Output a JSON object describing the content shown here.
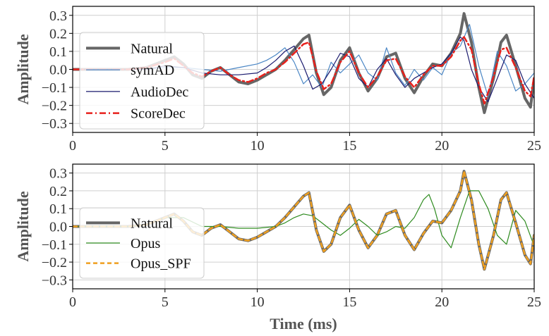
{
  "chart_data": [
    {
      "type": "line",
      "xlabel": "",
      "ylabel": "Amplitude",
      "xlim": [
        0,
        25
      ],
      "ylim": [
        -0.35,
        0.35
      ],
      "xticks": [
        0,
        5,
        10,
        15,
        20,
        25
      ],
      "yticks": [
        -0.3,
        -0.2,
        -0.1,
        0.0,
        0.1,
        0.2,
        0.3
      ],
      "xtick_labels": [
        "0",
        "5",
        "10",
        "15",
        "20",
        "25"
      ],
      "ytick_labels": [
        "−0.3",
        "−0.2",
        "−0.1",
        "0.0",
        "0.1",
        "0.2",
        "0.3"
      ],
      "grid": true,
      "legend_position": "upper-left",
      "series": [
        {
          "name": "Natural",
          "color": "#666666",
          "style": "solid-thick",
          "x": [
            0,
            1,
            2,
            3,
            4,
            5,
            5.5,
            6,
            6.5,
            7,
            7.5,
            8,
            8.5,
            9,
            9.5,
            10,
            10.5,
            11,
            11.5,
            12,
            12.5,
            12.8,
            13.2,
            13.6,
            14,
            14.5,
            15,
            15.5,
            16,
            16.5,
            17,
            17.5,
            18,
            18.5,
            19,
            19.5,
            20,
            20.5,
            21,
            21.2,
            21.6,
            22,
            22.3,
            22.8,
            23.2,
            23.5,
            24,
            24.5,
            24.8,
            25
          ],
          "y": [
            0.0,
            0.0,
            0.0,
            0.0,
            0.01,
            0.05,
            0.07,
            0.03,
            -0.03,
            -0.05,
            -0.01,
            0.01,
            -0.03,
            -0.07,
            -0.08,
            -0.06,
            -0.03,
            0.0,
            0.05,
            0.11,
            0.17,
            0.19,
            -0.02,
            -0.14,
            -0.1,
            0.05,
            0.12,
            -0.02,
            -0.12,
            -0.05,
            0.07,
            0.09,
            -0.05,
            -0.13,
            -0.04,
            0.03,
            0.02,
            0.09,
            0.2,
            0.31,
            0.15,
            -0.1,
            -0.24,
            -0.05,
            0.15,
            0.19,
            0.02,
            -0.16,
            -0.21,
            -0.05
          ]
        },
        {
          "name": "symAD",
          "color": "#4a86c5",
          "style": "solid-thin",
          "x": [
            0,
            1,
            2,
            3,
            4,
            5,
            6,
            7,
            8,
            9,
            10,
            10.5,
            11,
            11.5,
            12,
            12.5,
            13,
            13.5,
            14,
            14.5,
            15,
            15.5,
            16,
            16.5,
            17,
            17.5,
            18,
            18.5,
            19,
            19.5,
            20,
            20.5,
            21,
            21.5,
            22,
            22.5,
            23,
            23.5,
            24,
            24.5,
            25
          ],
          "y": [
            0.0,
            0.0,
            0.0,
            0.0,
            0.0,
            0.01,
            0.01,
            0.0,
            -0.01,
            0.01,
            0.03,
            0.05,
            0.08,
            0.12,
            0.04,
            -0.08,
            -0.03,
            -0.1,
            0.04,
            -0.02,
            0.03,
            0.08,
            -0.02,
            -0.06,
            0.12,
            -0.02,
            -0.09,
            0.0,
            -0.06,
            0.01,
            -0.03,
            0.09,
            0.13,
            0.25,
            0.02,
            -0.15,
            0.1,
            0.02,
            -0.12,
            -0.08,
            -0.02
          ]
        },
        {
          "name": "AudioDec",
          "color": "#1a1a6e",
          "style": "solid-thin",
          "x": [
            0,
            1,
            2,
            3,
            4,
            5,
            6,
            7,
            8,
            9,
            10,
            10.5,
            11,
            11.5,
            12,
            12.5,
            13,
            13.5,
            14,
            14.5,
            15,
            15.5,
            16,
            16.5,
            17,
            17.5,
            18,
            18.5,
            19,
            19.5,
            20,
            20.5,
            21,
            21.2,
            21.6,
            22,
            22.5,
            23,
            23.5,
            24,
            24.5,
            25
          ],
          "y": [
            0.0,
            0.0,
            0.0,
            0.0,
            0.0,
            0.02,
            0.01,
            -0.02,
            -0.03,
            -0.03,
            -0.02,
            0.01,
            0.05,
            0.1,
            0.13,
            0.02,
            -0.11,
            -0.08,
            0.0,
            0.09,
            0.07,
            -0.05,
            -0.1,
            0.0,
            0.06,
            -0.03,
            -0.1,
            -0.05,
            -0.02,
            0.01,
            0.03,
            0.09,
            0.18,
            0.16,
            0.0,
            -0.1,
            -0.18,
            -0.05,
            0.08,
            0.05,
            -0.08,
            -0.16
          ]
        },
        {
          "name": "ScoreDec",
          "color": "#e8211c",
          "style": "dashdot",
          "x": [
            0,
            1,
            2,
            3,
            4,
            5,
            5.5,
            6,
            6.5,
            7,
            7.5,
            8,
            8.5,
            9,
            9.5,
            10,
            10.5,
            11,
            11.5,
            12,
            12.5,
            12.8,
            13.2,
            13.6,
            14,
            14.5,
            15,
            15.5,
            16,
            16.5,
            17,
            17.5,
            18,
            18.5,
            19,
            19.5,
            20,
            20.5,
            21,
            21.2,
            21.6,
            22,
            22.3,
            22.8,
            23.2,
            23.5,
            24,
            24.5,
            24.8,
            25
          ],
          "y": [
            0.0,
            0.0,
            0.0,
            0.0,
            0.01,
            0.04,
            0.06,
            0.02,
            -0.02,
            -0.04,
            -0.01,
            0.01,
            -0.03,
            -0.06,
            -0.07,
            -0.05,
            -0.02,
            0.0,
            0.04,
            0.09,
            0.14,
            0.15,
            -0.01,
            -0.11,
            -0.08,
            0.04,
            0.1,
            -0.02,
            -0.1,
            -0.04,
            0.05,
            0.06,
            -0.04,
            -0.1,
            -0.03,
            0.02,
            0.02,
            0.07,
            0.16,
            0.18,
            0.11,
            -0.08,
            -0.19,
            -0.04,
            0.11,
            0.12,
            0.01,
            -0.12,
            -0.15,
            -0.04
          ]
        }
      ]
    },
    {
      "type": "line",
      "xlabel": "Time (ms)",
      "ylabel": "Amplitude",
      "xlim": [
        0,
        25
      ],
      "ylim": [
        -0.35,
        0.35
      ],
      "xticks": [
        0,
        5,
        10,
        15,
        20,
        25
      ],
      "yticks": [
        -0.3,
        -0.2,
        -0.1,
        0.0,
        0.1,
        0.2,
        0.3
      ],
      "xtick_labels": [
        "0",
        "5",
        "10",
        "15",
        "20",
        "25"
      ],
      "ytick_labels": [
        "−0.3",
        "−0.2",
        "−0.1",
        "0.0",
        "0.1",
        "0.2",
        "0.3"
      ],
      "grid": true,
      "legend_position": "lower-left",
      "series": [
        {
          "name": "Natural",
          "color": "#666666",
          "style": "solid-thick",
          "x": [
            0,
            1,
            2,
            3,
            4,
            5,
            5.5,
            6,
            6.5,
            7,
            7.5,
            8,
            8.5,
            9,
            9.5,
            10,
            10.5,
            11,
            11.5,
            12,
            12.5,
            12.8,
            13.2,
            13.6,
            14,
            14.5,
            15,
            15.5,
            16,
            16.5,
            17,
            17.5,
            18,
            18.5,
            19,
            19.5,
            20,
            20.5,
            21,
            21.2,
            21.6,
            22,
            22.3,
            22.8,
            23.2,
            23.5,
            24,
            24.5,
            24.8,
            25
          ],
          "y": [
            0.0,
            0.0,
            0.0,
            0.0,
            0.01,
            0.05,
            0.07,
            0.03,
            -0.03,
            -0.05,
            -0.01,
            0.01,
            -0.03,
            -0.07,
            -0.08,
            -0.06,
            -0.03,
            0.0,
            0.05,
            0.11,
            0.17,
            0.19,
            -0.02,
            -0.14,
            -0.1,
            0.05,
            0.12,
            -0.02,
            -0.12,
            -0.05,
            0.07,
            0.09,
            -0.05,
            -0.13,
            -0.04,
            0.03,
            0.02,
            0.09,
            0.2,
            0.31,
            0.15,
            -0.1,
            -0.24,
            -0.05,
            0.15,
            0.19,
            0.02,
            -0.16,
            -0.21,
            -0.05
          ]
        },
        {
          "name": "Opus",
          "color": "#2e8b1f",
          "style": "solid-thin",
          "x": [
            0,
            1,
            2,
            3,
            4,
            5,
            6,
            7,
            8,
            9,
            10,
            11,
            11.5,
            12,
            12.5,
            13,
            13.5,
            14,
            14.5,
            15,
            15.5,
            16,
            16.5,
            17,
            17.5,
            18,
            18.5,
            19,
            19.3,
            19.6,
            20,
            20.5,
            21,
            21.5,
            22,
            22.5,
            23,
            23.5,
            24,
            24.5,
            25
          ],
          "y": [
            0.0,
            0.0,
            0.0,
            0.0,
            0.01,
            0.05,
            0.05,
            0.0,
            0.0,
            -0.01,
            -0.01,
            0.0,
            0.02,
            0.05,
            0.07,
            0.06,
            0.02,
            -0.02,
            -0.05,
            -0.01,
            0.04,
            0.0,
            -0.05,
            -0.03,
            0.0,
            -0.01,
            0.05,
            0.15,
            0.18,
            0.1,
            -0.05,
            -0.12,
            0.05,
            0.2,
            0.2,
            0.1,
            -0.05,
            -0.1,
            0.09,
            0.03,
            -0.11
          ]
        },
        {
          "name": "Opus_SPF",
          "color": "#f0a020",
          "style": "dashed",
          "x": [
            0,
            1,
            2,
            3,
            4,
            5,
            5.5,
            6,
            6.5,
            7,
            7.5,
            8,
            8.5,
            9,
            9.5,
            10,
            10.5,
            11,
            11.5,
            12,
            12.5,
            12.8,
            13.2,
            13.6,
            14,
            14.5,
            15,
            15.5,
            16,
            16.5,
            17,
            17.5,
            18,
            18.5,
            19,
            19.5,
            20,
            20.5,
            21,
            21.2,
            21.6,
            22,
            22.3,
            22.8,
            23.2,
            23.5,
            24,
            24.5,
            24.8,
            25
          ],
          "y": [
            0.0,
            0.0,
            0.0,
            0.0,
            0.01,
            0.05,
            0.07,
            0.03,
            -0.03,
            -0.05,
            -0.01,
            0.01,
            -0.03,
            -0.07,
            -0.08,
            -0.06,
            -0.03,
            0.0,
            0.05,
            0.11,
            0.17,
            0.19,
            -0.02,
            -0.14,
            -0.1,
            0.05,
            0.12,
            -0.02,
            -0.12,
            -0.05,
            0.07,
            0.09,
            -0.05,
            -0.13,
            -0.04,
            0.03,
            0.02,
            0.09,
            0.2,
            0.31,
            0.15,
            -0.1,
            -0.24,
            -0.05,
            0.15,
            0.19,
            0.02,
            -0.16,
            -0.21,
            -0.05
          ]
        }
      ]
    }
  ]
}
